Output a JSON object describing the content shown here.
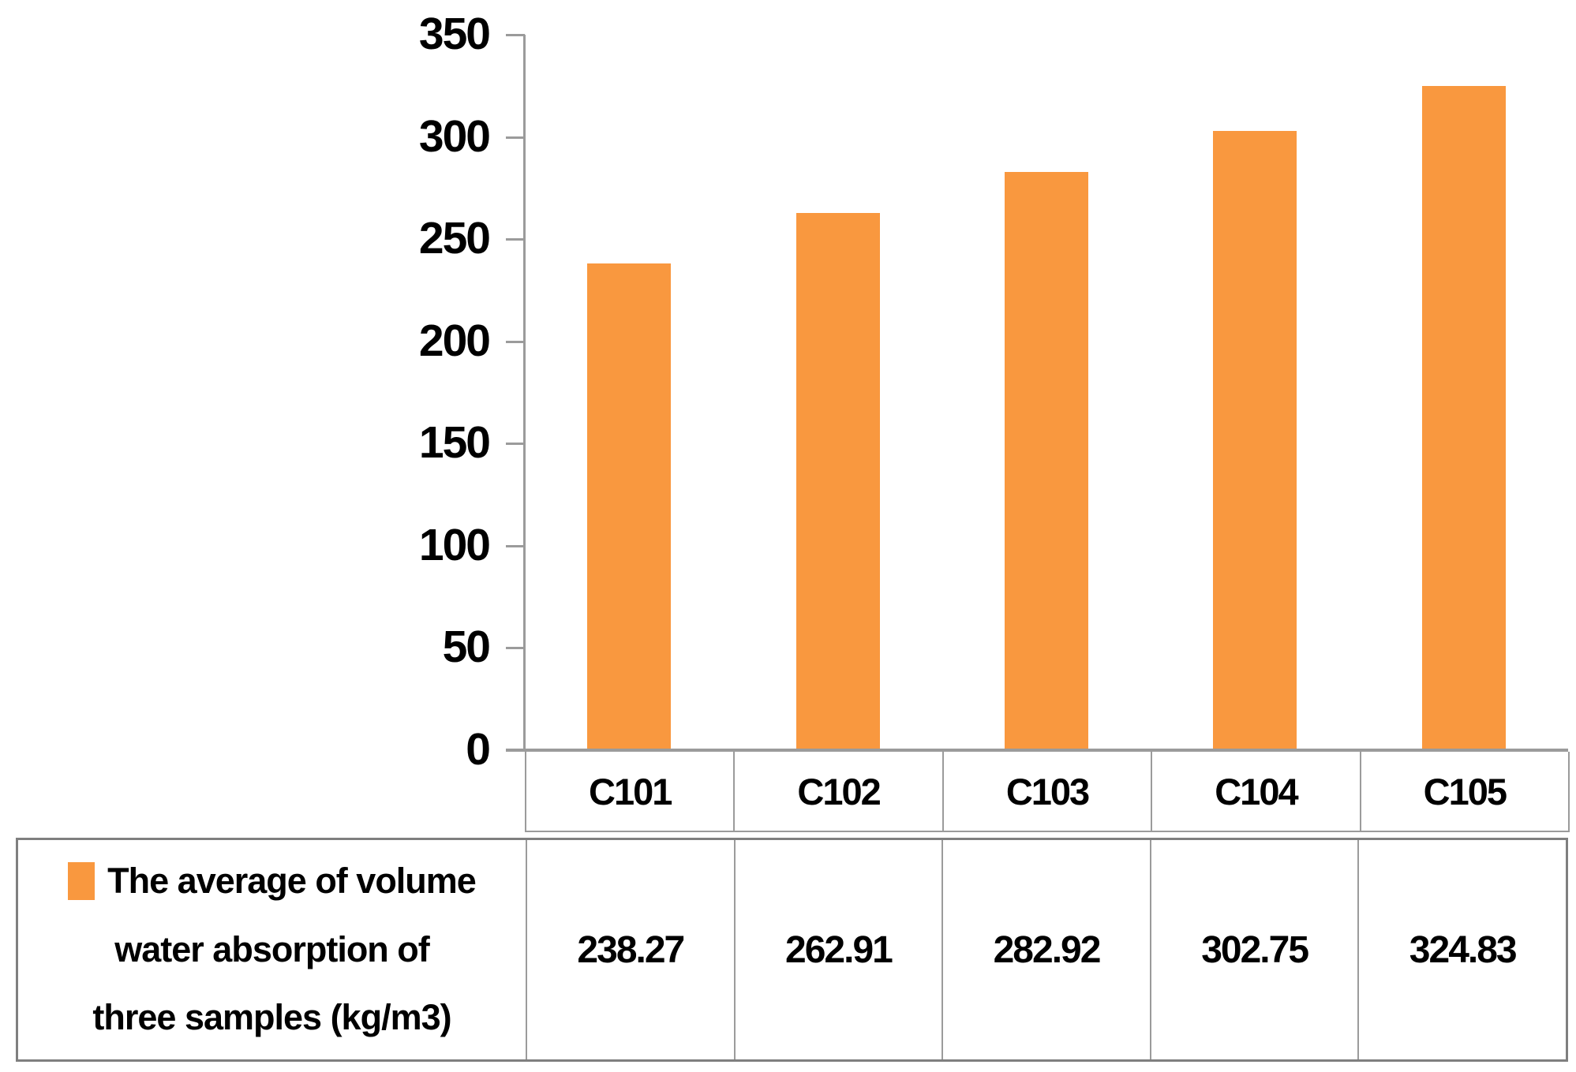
{
  "chart_data": {
    "type": "bar",
    "title": "",
    "xlabel": "",
    "ylabel": "",
    "categories": [
      "C101",
      "C102",
      "C103",
      "C104",
      "C105"
    ],
    "series": [
      {
        "name": "The average of volume water absorption of three samples (kg/m3)",
        "values": [
          238.27,
          262.91,
          282.92,
          302.75,
          324.83
        ]
      }
    ],
    "value_labels": [
      "238.27",
      "262.91",
      "282.92",
      "302.75",
      "324.83"
    ],
    "ylim": [
      0,
      350
    ],
    "yticks": [
      0,
      50,
      100,
      150,
      200,
      250,
      300,
      350
    ],
    "grid": false,
    "legend_position": "bottom-table",
    "bar_color": "#F9983F",
    "axis_color": "#9B9B9B",
    "table_border_color": "#9B9B9B"
  },
  "legend": {
    "lines": [
      "The average of volume",
      "water absorption of",
      "three samples (kg/m3)"
    ]
  }
}
